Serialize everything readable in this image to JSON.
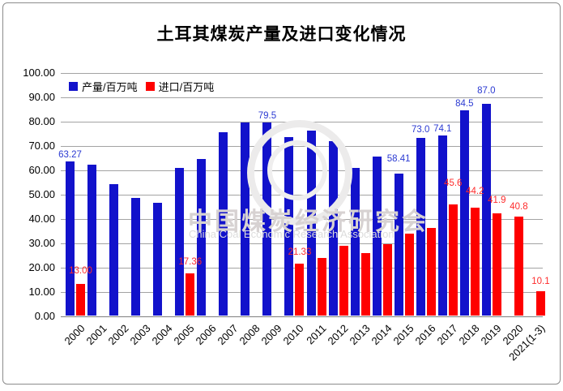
{
  "title": "土耳其煤炭产量及进口变化情况",
  "legend_items": [
    {
      "label": "产量/百万吨",
      "color": "#1212cb"
    },
    {
      "label": "进口/百万吨",
      "color": "#fe0000"
    }
  ],
  "watermark": {
    "line1": "中国煤炭经济研究会",
    "line2": "China Coal Economic Research Association"
  },
  "y_axis": {
    "ticks": [
      "100.00",
      "90.00",
      "80.00",
      "70.00",
      "60.00",
      "50.00",
      "40.00",
      "30.00",
      "20.00",
      "10.00",
      "0.00"
    ]
  },
  "chart_data": {
    "type": "bar",
    "title": "土耳其煤炭产量及进口变化情况",
    "xlabel": "",
    "ylabel": "",
    "ylim": [
      0,
      100
    ],
    "y_step": 10,
    "grid": true,
    "legend_position": "top-left-inside",
    "categories": [
      "2000",
      "2001",
      "2002",
      "2003",
      "2004",
      "2005",
      "2006",
      "2007",
      "2008",
      "2009",
      "2010",
      "2011",
      "2012",
      "2013",
      "2014",
      "2015",
      "2016",
      "2017",
      "2018",
      "2019",
      "2020",
      "2021(1-3)"
    ],
    "series": [
      {
        "name": "产量/百万吨",
        "color": "#1212cb",
        "label_color": "#2b3ad2",
        "values": [
          63.27,
          62.0,
          54.0,
          48.5,
          46.3,
          60.8,
          64.2,
          75.5,
          79.4,
          79.5,
          73.3,
          76.0,
          71.6,
          60.7,
          65.2,
          58.41,
          73.0,
          74.1,
          84.5,
          87.0,
          null,
          null
        ],
        "labels": [
          "63.27",
          null,
          null,
          null,
          null,
          null,
          null,
          null,
          null,
          "79.5",
          null,
          null,
          null,
          null,
          null,
          "58.41",
          "73.0",
          "74.1",
          "84.5",
          "87.0",
          null,
          null
        ],
        "label_offsets": [
          0,
          0,
          0,
          0,
          0,
          0,
          0,
          0,
          0,
          0,
          0,
          0,
          0,
          0,
          0,
          10,
          2,
          0,
          0,
          8,
          0,
          0
        ]
      },
      {
        "name": "进口/百万吨",
        "color": "#fe0000",
        "label_color": "#fe2b2b",
        "values": [
          13.0,
          null,
          null,
          null,
          null,
          17.36,
          null,
          null,
          null,
          null,
          21.33,
          23.7,
          28.8,
          25.8,
          29.2,
          33.8,
          36.0,
          45.6,
          44.2,
          41.9,
          40.8,
          10.1
        ],
        "labels": [
          "13.00",
          null,
          null,
          null,
          null,
          "17.36",
          null,
          null,
          null,
          null,
          "21.33",
          null,
          null,
          null,
          null,
          null,
          null,
          "45.6",
          "44.2",
          "41.9",
          "40.8",
          "10.1"
        ],
        "label_offsets": [
          8,
          0,
          0,
          0,
          0,
          6,
          0,
          0,
          0,
          0,
          6,
          0,
          0,
          0,
          0,
          0,
          0,
          18,
          12,
          8,
          4,
          4
        ]
      }
    ]
  }
}
